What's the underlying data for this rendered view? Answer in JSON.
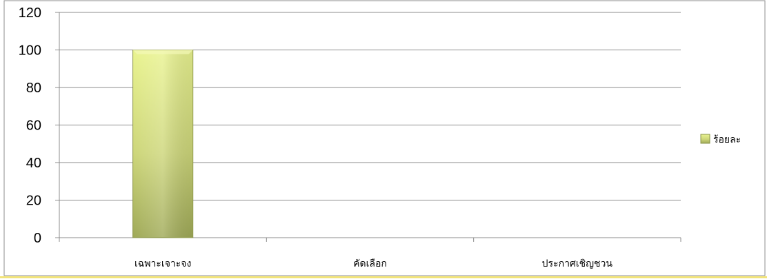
{
  "chart_data": {
    "type": "bar",
    "categories": [
      "เฉพาะเจาะจง",
      "คัดเลือก",
      "ประกาศเชิญชวน"
    ],
    "series": [
      {
        "name": "ร้อยละ",
        "values": [
          100,
          0,
          0
        ]
      }
    ],
    "yticks": [
      "0",
      "20",
      "40",
      "60",
      "80",
      "100",
      "120"
    ],
    "ylim": [
      0,
      120
    ],
    "grid": true,
    "legend_position": "right",
    "colors": {
      "bar_light": "#e8f290",
      "bar_dark": "#a3ad5c",
      "bar_edge": "#8a9448",
      "frame": "#f2e47a",
      "grid": "#8c8c8c"
    }
  }
}
